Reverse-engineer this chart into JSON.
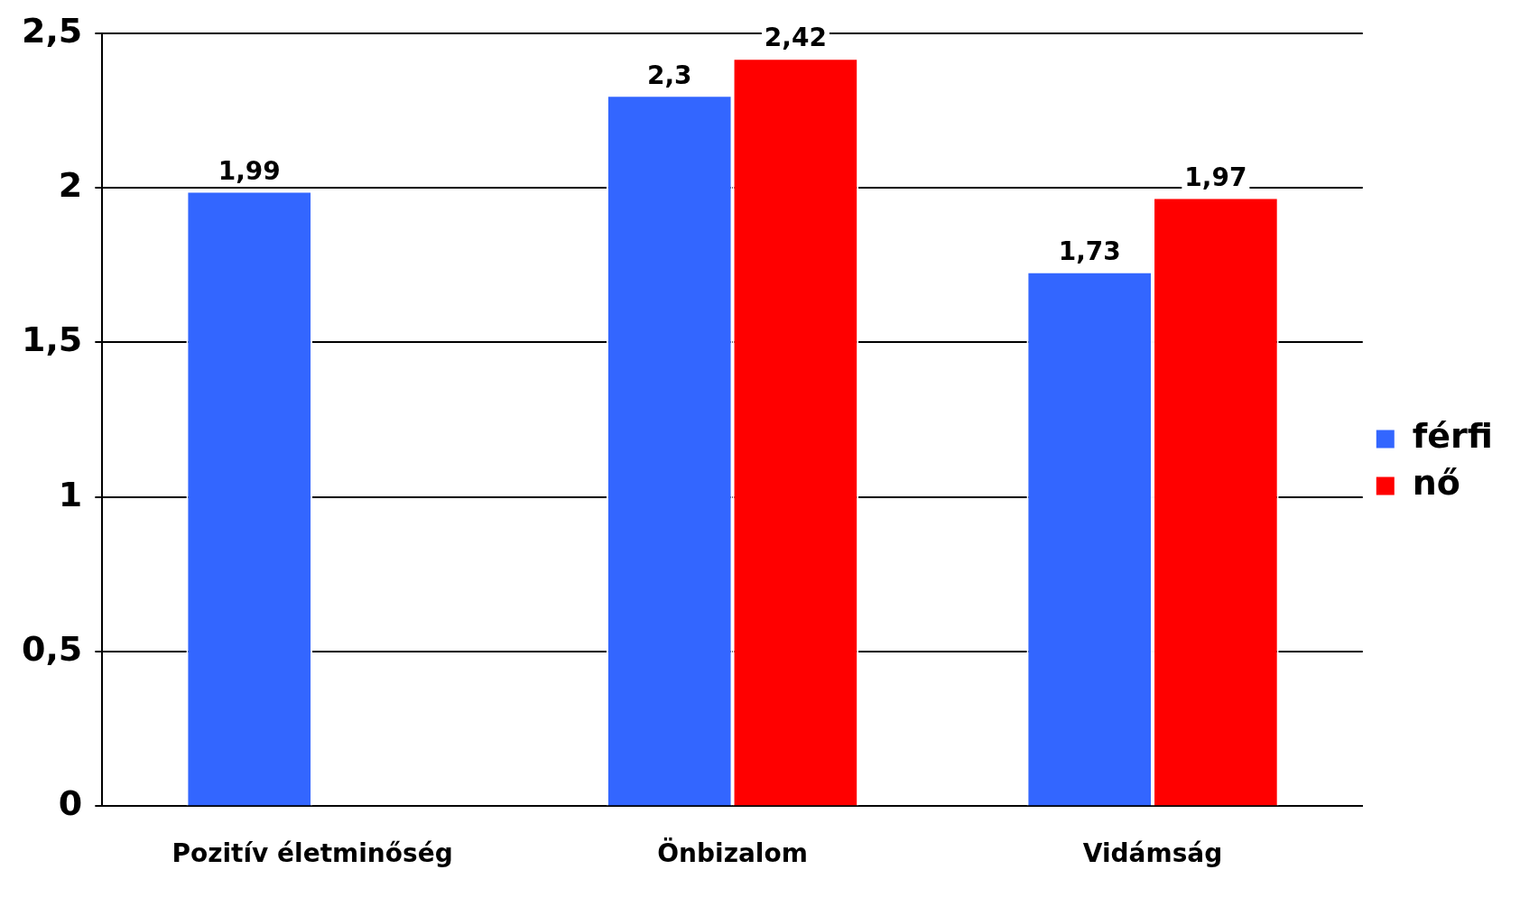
{
  "chart_data": {
    "type": "bar",
    "categories": [
      "Pozitív életminőség",
      "Önbizalom",
      "Vidámság"
    ],
    "series": [
      {
        "name": "férfi",
        "color": "#3366ff",
        "values": [
          1.99,
          2.3,
          1.73
        ],
        "value_labels": [
          "1,99",
          "2,3",
          "1,73"
        ]
      },
      {
        "name": "nő",
        "color": "#ff0000",
        "values": [
          null,
          2.42,
          1.97
        ],
        "value_labels": [
          null,
          "2,42",
          "1,97"
        ]
      }
    ],
    "ylim": [
      0,
      2.5
    ],
    "yticks": [
      0,
      {
        "value": 0.5,
        "label": "0,5"
      },
      1,
      {
        "value": 1.5,
        "label": "1,5"
      },
      2,
      {
        "value": 2.5,
        "label": "2,5"
      }
    ],
    "grid": "y",
    "legend": "right"
  }
}
